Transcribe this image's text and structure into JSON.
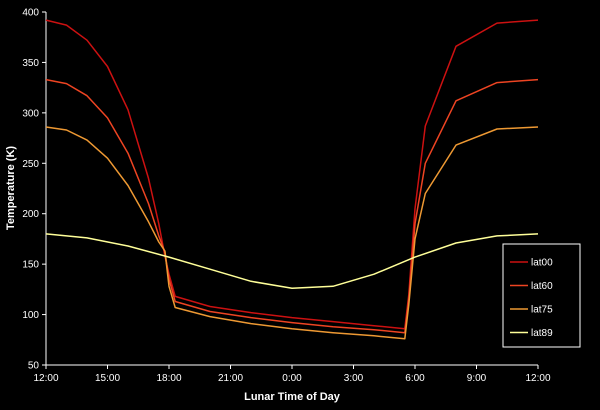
{
  "chart_data": {
    "type": "line",
    "title": "",
    "xlabel": "Lunar Time of Day",
    "ylabel": "Temperature (K)",
    "x_tick_labels": [
      "12:00",
      "15:00",
      "18:00",
      "21:00",
      "0:00",
      "3:00",
      "6:00",
      "9:00",
      "12:00"
    ],
    "x_tick_hours": [
      0,
      3,
      6,
      9,
      12,
      15,
      18,
      21,
      24
    ],
    "ylim": [
      50,
      400
    ],
    "y_ticks": [
      50,
      100,
      150,
      200,
      250,
      300,
      350,
      400
    ],
    "grid": false,
    "legend_position": "right",
    "series": [
      {
        "name": "lat00",
        "color": "#cc1111",
        "x": [
          0,
          1,
          2,
          3,
          4,
          5,
          5.5,
          5.8,
          6.0,
          6.3,
          8,
          10,
          12,
          14,
          16,
          17.5,
          17.7,
          18.0,
          18.5,
          20,
          22,
          24
        ],
        "y": [
          392,
          387,
          372,
          346,
          303,
          235,
          190,
          158,
          140,
          118,
          108,
          102,
          97,
          93,
          89,
          86,
          120,
          205,
          287,
          366,
          389,
          392
        ]
      },
      {
        "name": "lat60",
        "color": "#ee4422",
        "x": [
          0,
          1,
          2,
          3,
          4,
          5,
          5.5,
          5.8,
          6.0,
          6.3,
          8,
          10,
          12,
          14,
          16,
          17.5,
          17.7,
          18.0,
          18.5,
          20,
          22,
          24
        ],
        "y": [
          333,
          329,
          317,
          295,
          260,
          210,
          178,
          162,
          135,
          113,
          103,
          97,
          92,
          88,
          85,
          82,
          115,
          190,
          250,
          312,
          330,
          333
        ]
      },
      {
        "name": "lat75",
        "color": "#ee9933",
        "x": [
          0,
          1,
          2,
          3,
          4,
          5,
          5.5,
          5.8,
          6.0,
          6.3,
          8,
          10,
          12,
          14,
          16,
          17.5,
          17.7,
          18.0,
          18.5,
          20,
          22,
          24
        ],
        "y": [
          286,
          283,
          273,
          255,
          228,
          192,
          172,
          163,
          128,
          107,
          98,
          91,
          86,
          82,
          79,
          76,
          110,
          175,
          220,
          268,
          284,
          286
        ]
      },
      {
        "name": "lat89",
        "color": "#ffff99",
        "x": [
          0,
          2,
          4,
          6,
          8,
          10,
          12,
          14,
          16,
          18,
          20,
          22,
          24
        ],
        "y": [
          180,
          176,
          168,
          157,
          145,
          133,
          126,
          128,
          140,
          157,
          171,
          178,
          180
        ]
      }
    ]
  }
}
